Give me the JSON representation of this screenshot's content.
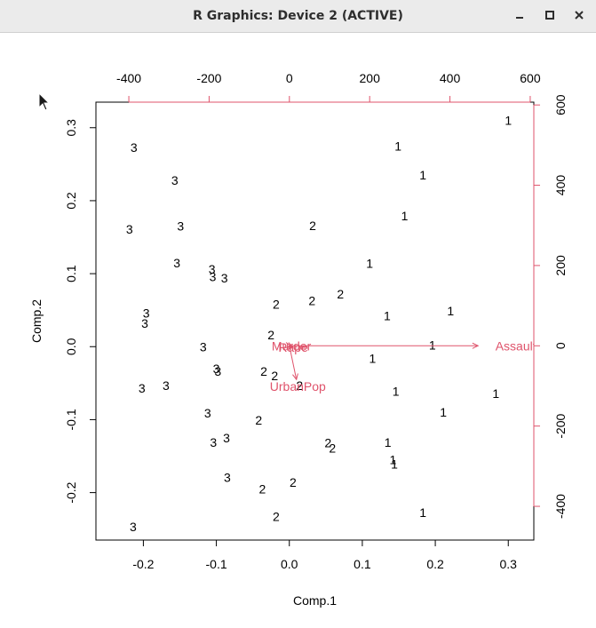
{
  "window": {
    "title": "R Graphics: Device 2 (ACTIVE)",
    "buttons": {
      "minimize": "minimize-icon",
      "maximize": "maximize-icon",
      "close": "close-icon"
    }
  },
  "colors": {
    "accent": "#df536b",
    "text": "#000000",
    "titlebar": "#ebebeb"
  },
  "chart_data": {
    "type": "scatter",
    "subtype": "biplot",
    "xlabel": "Comp.1",
    "ylabel": "Comp.2",
    "xlim": [
      -0.265,
      0.335
    ],
    "ylim": [
      -0.265,
      0.335
    ],
    "x_ticks": [
      -0.2,
      -0.1,
      0.0,
      0.1,
      0.2,
      0.3
    ],
    "x_tick_labels": [
      "-0.2",
      "-0.1",
      "0.0",
      "0.1",
      "0.2",
      "0.3"
    ],
    "y_ticks": [
      -0.2,
      -0.1,
      0.0,
      0.1,
      0.2,
      0.3
    ],
    "y_tick_labels": [
      "-0.2",
      "-0.1",
      "0.0",
      "0.1",
      "0.2",
      "0.3"
    ],
    "top_axis": {
      "lim": [
        -482,
        609
      ],
      "ticks": [
        -400,
        -200,
        0,
        200,
        400,
        600
      ],
      "tick_labels": [
        "-400",
        "-200",
        "0",
        "200",
        "400",
        "600"
      ]
    },
    "right_axis": {
      "lim": [
        -484,
        607
      ],
      "ticks": [
        -400,
        -200,
        0,
        200,
        400,
        600
      ],
      "tick_labels": [
        "-400",
        "-200",
        "0",
        "200",
        "400",
        "600"
      ]
    },
    "points": [
      {
        "label": "1",
        "x": 0.3,
        "y": 0.31
      },
      {
        "label": "1",
        "x": 0.149,
        "y": 0.275
      },
      {
        "label": "1",
        "x": 0.183,
        "y": 0.235
      },
      {
        "label": "1",
        "x": 0.158,
        "y": 0.179
      },
      {
        "label": "1",
        "x": 0.11,
        "y": 0.114
      },
      {
        "label": "1",
        "x": 0.221,
        "y": 0.049
      },
      {
        "label": "1",
        "x": 0.134,
        "y": 0.042
      },
      {
        "label": "1",
        "x": 0.196,
        "y": 0.002
      },
      {
        "label": "1",
        "x": 0.114,
        "y": -0.016
      },
      {
        "label": "1",
        "x": 0.146,
        "y": -0.061
      },
      {
        "label": "1",
        "x": 0.283,
        "y": -0.064
      },
      {
        "label": "1",
        "x": 0.211,
        "y": -0.09
      },
      {
        "label": "1",
        "x": 0.135,
        "y": -0.131
      },
      {
        "label": "1",
        "x": 0.142,
        "y": -0.155
      },
      {
        "label": "1",
        "x": 0.144,
        "y": -0.161
      },
      {
        "label": "1",
        "x": 0.183,
        "y": -0.227
      },
      {
        "label": "2",
        "x": 0.032,
        "y": 0.166
      },
      {
        "label": "2",
        "x": 0.07,
        "y": 0.072
      },
      {
        "label": "2",
        "x": 0.031,
        "y": 0.063
      },
      {
        "label": "2",
        "x": -0.018,
        "y": 0.058
      },
      {
        "label": "2",
        "x": -0.025,
        "y": 0.016
      },
      {
        "label": "2",
        "x": -0.035,
        "y": -0.034
      },
      {
        "label": "2",
        "x": -0.02,
        "y": -0.04
      },
      {
        "label": "2",
        "x": 0.014,
        "y": -0.053
      },
      {
        "label": "2",
        "x": -0.042,
        "y": -0.101
      },
      {
        "label": "2",
        "x": 0.053,
        "y": -0.132
      },
      {
        "label": "2",
        "x": 0.059,
        "y": -0.139
      },
      {
        "label": "2",
        "x": 0.005,
        "y": -0.186
      },
      {
        "label": "2",
        "x": -0.037,
        "y": -0.195
      },
      {
        "label": "2",
        "x": -0.018,
        "y": -0.233
      },
      {
        "label": "3",
        "x": -0.213,
        "y": 0.273
      },
      {
        "label": "3",
        "x": -0.157,
        "y": 0.228
      },
      {
        "label": "3",
        "x": -0.149,
        "y": 0.165
      },
      {
        "label": "3",
        "x": -0.219,
        "y": 0.161
      },
      {
        "label": "3",
        "x": -0.154,
        "y": 0.115
      },
      {
        "label": "3",
        "x": -0.106,
        "y": 0.106
      },
      {
        "label": "3",
        "x": -0.105,
        "y": 0.096
      },
      {
        "label": "3",
        "x": -0.089,
        "y": 0.094
      },
      {
        "label": "3",
        "x": -0.196,
        "y": 0.046
      },
      {
        "label": "3",
        "x": -0.198,
        "y": 0.032
      },
      {
        "label": "3",
        "x": -0.118,
        "y": 0.0
      },
      {
        "label": "3",
        "x": -0.1,
        "y": -0.03
      },
      {
        "label": "3",
        "x": -0.098,
        "y": -0.034
      },
      {
        "label": "3",
        "x": -0.169,
        "y": -0.053
      },
      {
        "label": "3",
        "x": -0.202,
        "y": -0.057
      },
      {
        "label": "3",
        "x": -0.112,
        "y": -0.091
      },
      {
        "label": "3",
        "x": -0.086,
        "y": -0.125
      },
      {
        "label": "3",
        "x": -0.104,
        "y": -0.131
      },
      {
        "label": "3",
        "x": -0.214,
        "y": -0.247
      },
      {
        "label": "3",
        "x": -0.085,
        "y": -0.179
      }
    ],
    "loadings": [
      {
        "name": "Murder",
        "x": 4.2,
        "y": -0.7
      },
      {
        "name": "Assault",
        "x": 470,
        "y": 0
      },
      {
        "name": "UrbanPop",
        "x": 17.5,
        "y": -84
      },
      {
        "name": "Rape",
        "x": 8,
        "y": -3.5
      }
    ]
  }
}
